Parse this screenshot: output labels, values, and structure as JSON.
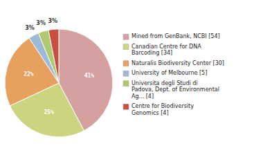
{
  "chart_data": {
    "type": "pie",
    "categories": [
      "Mined from GenBank, NCBI [54]",
      "Canadian Centre for DNA\nBarcoding [34]",
      "Naturalis Biodiversity Center [30]",
      "University of Melbourne [5]",
      "Universita degli Studi di\nPadova, Dept. of Environmental\nAg... [4]",
      "Centre for Biodiversity\nGenomics [4]"
    ],
    "values": [
      41,
      25,
      22,
      3,
      3,
      3
    ],
    "value_labels": [
      "41%",
      "25%",
      "22%",
      "3%",
      "3%",
      "3%"
    ],
    "colors": [
      "#d4a0a0",
      "#ccd480",
      "#e8a060",
      "#a0b8d8",
      "#b0c870",
      "#c85040"
    ],
    "data_labels": true,
    "legend": "right"
  }
}
